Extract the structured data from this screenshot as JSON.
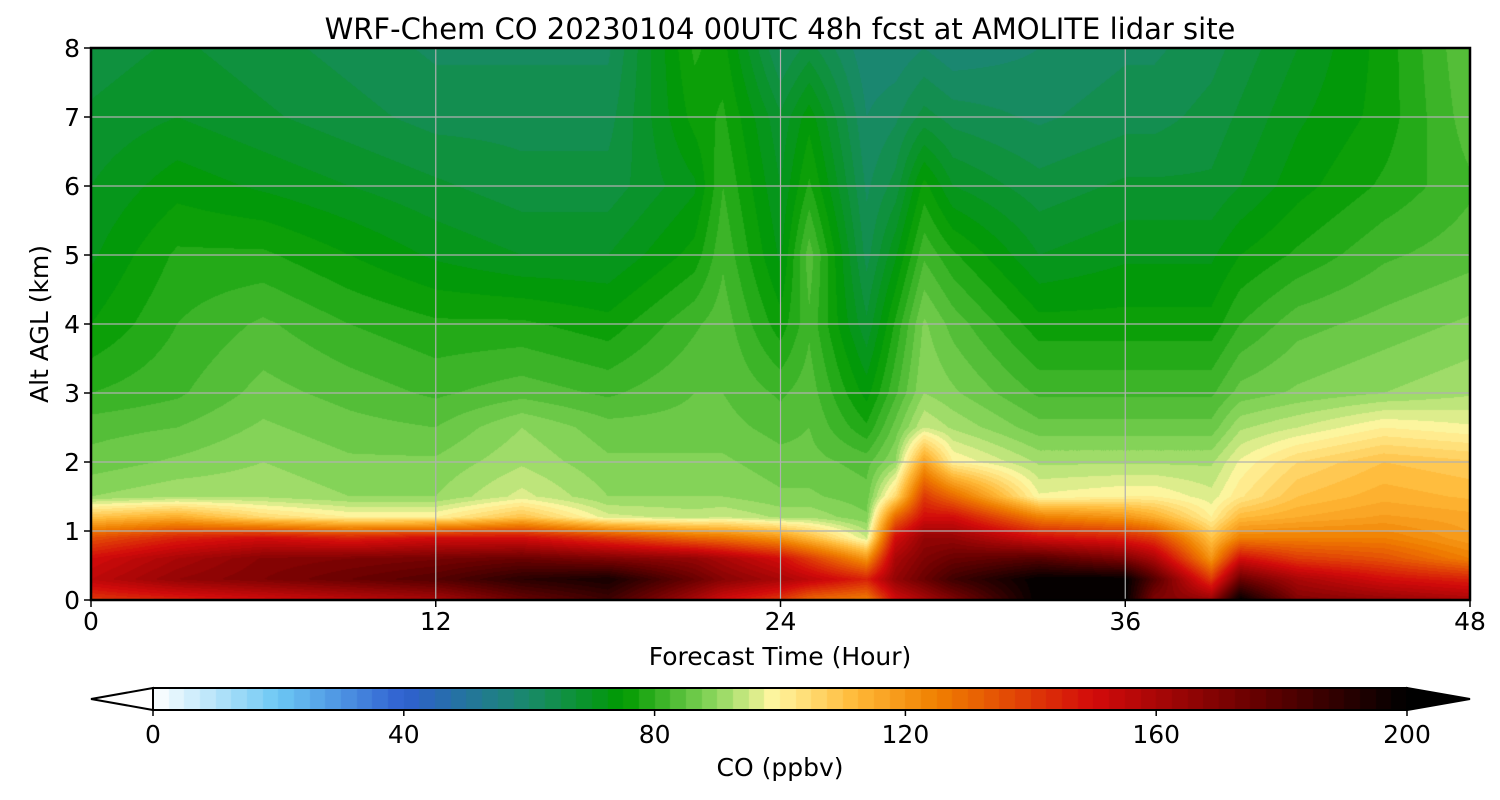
{
  "chart_data": {
    "type": "heatmap",
    "title": "WRF-Chem CO  20230104 00UTC 48h fcst at AMOLITE lidar site",
    "xlabel": "Forecast Time (Hour)",
    "ylabel": "Alt AGL (km)",
    "xlim": [
      0,
      48
    ],
    "ylim": [
      0,
      8
    ],
    "xticks": [
      0,
      12,
      24,
      36,
      48
    ],
    "yticks": [
      0,
      1,
      2,
      3,
      4,
      5,
      6,
      7,
      8
    ],
    "grid": true,
    "colorbar": {
      "label": "CO  (ppbv)",
      "range": [
        0,
        200
      ],
      "ticks": [
        0,
        40,
        80,
        120,
        160,
        200
      ],
      "extend": "both",
      "orientation": "horizontal",
      "stops": [
        {
          "value": 0,
          "color": "#ffffff"
        },
        {
          "value": 20,
          "color": "#6cc8f4"
        },
        {
          "value": 40,
          "color": "#2f5fd0"
        },
        {
          "value": 60,
          "color": "#198a6a"
        },
        {
          "value": 75,
          "color": "#009a00"
        },
        {
          "value": 90,
          "color": "#90d860"
        },
        {
          "value": 99,
          "color": "#fff6a0"
        },
        {
          "value": 112,
          "color": "#ffb938"
        },
        {
          "value": 125,
          "color": "#f08000"
        },
        {
          "value": 150,
          "color": "#d30a0a"
        },
        {
          "value": 175,
          "color": "#6a0000"
        },
        {
          "value": 200,
          "color": "#000000"
        }
      ]
    },
    "hours": [
      0,
      3,
      6,
      9,
      12,
      15,
      18,
      21,
      22,
      24,
      25,
      27,
      28,
      29,
      30,
      33,
      36,
      37,
      39,
      40,
      42,
      45,
      48
    ],
    "altitudes_km": [
      0,
      0.3,
      0.6,
      0.9,
      1.2,
      1.5,
      2,
      2.5,
      3,
      4,
      5,
      6,
      7,
      8
    ],
    "values_ppbv": [
      [
        140,
        155,
        150,
        135,
        110,
        90,
        86,
        84,
        80,
        75,
        72,
        70,
        68,
        66
      ],
      [
        145,
        165,
        160,
        145,
        115,
        92,
        88,
        85,
        82,
        80,
        78,
        74,
        70,
        68
      ],
      [
        150,
        170,
        168,
        150,
        105,
        92,
        90,
        88,
        86,
        83,
        78,
        72,
        68,
        66
      ],
      [
        155,
        175,
        170,
        145,
        100,
        90,
        88,
        86,
        84,
        80,
        75,
        70,
        66,
        64
      ],
      [
        160,
        180,
        172,
        150,
        100,
        90,
        88,
        85,
        82,
        78,
        72,
        68,
        64,
        62
      ],
      [
        175,
        190,
        175,
        150,
        110,
        96,
        92,
        90,
        84,
        78,
        70,
        66,
        64,
        62
      ],
      [
        185,
        195,
        170,
        140,
        96,
        90,
        88,
        86,
        82,
        76,
        70,
        66,
        64,
        62
      ],
      [
        160,
        175,
        165,
        130,
        94,
        90,
        88,
        86,
        85,
        82,
        76,
        72,
        76,
        78
      ],
      [
        150,
        168,
        160,
        128,
        95,
        90,
        88,
        86,
        85,
        84,
        82,
        80,
        78,
        76
      ],
      [
        140,
        160,
        150,
        120,
        92,
        88,
        86,
        84,
        82,
        76,
        72,
        70,
        68,
        62
      ],
      [
        130,
        155,
        140,
        112,
        92,
        88,
        86,
        85,
        84,
        82,
        84,
        78,
        74,
        66
      ],
      [
        125,
        145,
        120,
        95,
        88,
        86,
        84,
        78,
        74,
        68,
        64,
        62,
        60,
        58
      ],
      [
        150,
        165,
        160,
        150,
        130,
        105,
        90,
        86,
        82,
        78,
        72,
        66,
        62,
        58
      ],
      [
        160,
        175,
        170,
        165,
        150,
        140,
        118,
        95,
        90,
        88,
        82,
        76,
        66,
        60
      ],
      [
        170,
        185,
        175,
        165,
        150,
        130,
        100,
        92,
        88,
        84,
        78,
        70,
        64,
        58
      ],
      [
        200,
        200,
        180,
        150,
        125,
        98,
        92,
        86,
        82,
        76,
        70,
        66,
        62,
        60
      ],
      [
        200,
        200,
        170,
        145,
        120,
        100,
        92,
        86,
        82,
        76,
        72,
        68,
        64,
        62
      ],
      [
        170,
        180,
        160,
        140,
        115,
        100,
        92,
        86,
        82,
        76,
        72,
        68,
        64,
        62
      ],
      [
        165,
        140,
        120,
        110,
        100,
        96,
        92,
        86,
        82,
        76,
        72,
        68,
        66,
        64
      ],
      [
        200,
        175,
        150,
        125,
        112,
        102,
        98,
        92,
        86,
        80,
        75,
        70,
        68,
        66
      ],
      [
        170,
        160,
        140,
        125,
        115,
        110,
        105,
        95,
        88,
        84,
        78,
        74,
        72,
        70
      ],
      [
        165,
        150,
        135,
        125,
        118,
        114,
        110,
        100,
        90,
        86,
        82,
        78,
        76,
        76
      ],
      [
        160,
        145,
        125,
        118,
        116,
        112,
        108,
        98,
        92,
        88,
        84,
        82,
        84,
        85
      ]
    ]
  }
}
